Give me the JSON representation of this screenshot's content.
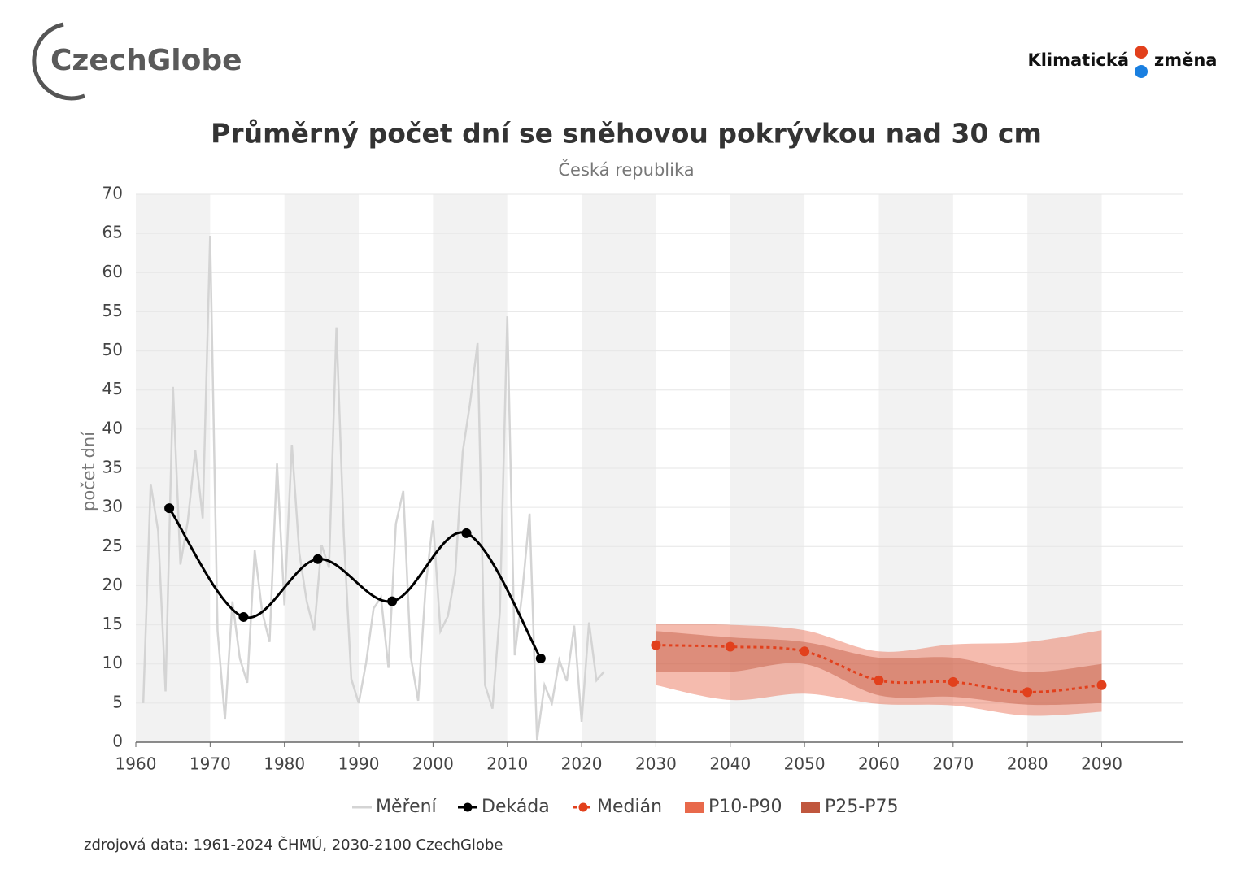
{
  "logos": {
    "left": "CzechGlobe",
    "right_1": "Klimatická",
    "right_2": "změna"
  },
  "chart_data": {
    "type": "line",
    "title": "Průměrný počet dní se sněhovou pokrývkou nad 30 cm",
    "subtitle": "Česká republika",
    "y_label": "počet dní",
    "source": "zdrojová data: 1961-2024 ČHMÚ, 2030-2100 CzechGlobe",
    "xlim": [
      1960,
      2101
    ],
    "xticks": [
      1960,
      1970,
      1980,
      1990,
      2000,
      2010,
      2020,
      2030,
      2040,
      2050,
      2060,
      2070,
      2080,
      2090
    ],
    "ylim": [
      0,
      70
    ],
    "yticks": [
      0,
      5,
      10,
      15,
      20,
      25,
      30,
      35,
      40,
      45,
      50,
      55,
      60,
      65,
      70
    ],
    "grid": true,
    "series": [
      {
        "name": "Měření",
        "type": "line",
        "color": "#d4d4d4",
        "x": [
          1961,
          1962,
          1963,
          1964,
          1965,
          1966,
          1967,
          1968,
          1969,
          1970,
          1971,
          1972,
          1973,
          1974,
          1975,
          1976,
          1977,
          1978,
          1979,
          1980,
          1981,
          1982,
          1983,
          1984,
          1985,
          1986,
          1987,
          1988,
          1989,
          1990,
          1991,
          1992,
          1993,
          1994,
          1995,
          1996,
          1997,
          1998,
          1999,
          2000,
          2001,
          2002,
          2003,
          2004,
          2005,
          2006,
          2007,
          2008,
          2009,
          2010,
          2011,
          2012,
          2013,
          2014,
          2015,
          2016,
          2017,
          2018,
          2019,
          2020,
          2021,
          2022,
          2023
        ],
        "values": [
          5,
          33,
          27,
          6.5,
          45.4,
          22.7,
          28.3,
          37.3,
          28.6,
          64.7,
          14.2,
          2.9,
          18,
          10.7,
          7.6,
          24.5,
          16.7,
          12.8,
          35.6,
          17.5,
          38,
          24.2,
          18,
          14.3,
          25.2,
          22.3,
          53,
          26.3,
          8.1,
          5,
          10.2,
          17.1,
          18.5,
          9.5,
          27.9,
          32.1,
          10.9,
          5.3,
          19.8,
          28.3,
          14.2,
          16.1,
          21.6,
          37.1,
          43.4,
          51,
          7.3,
          4.3,
          16.7,
          54.4,
          11.1,
          19,
          29.2,
          0.3,
          7.3,
          5,
          10.5,
          7.8,
          14.9,
          2.6,
          15.3,
          7.9,
          9
        ]
      },
      {
        "name": "Dekáda",
        "type": "smooth",
        "color": "#000000",
        "markers": true,
        "x": [
          1964.5,
          1974.5,
          1984.5,
          1994.5,
          2004.5,
          2014.5
        ],
        "values": [
          29.9,
          16,
          23.4,
          18,
          26.7,
          10.7
        ]
      },
      {
        "name": "Medián",
        "type": "smooth",
        "dashed": true,
        "markers": true,
        "color": "#e2401c",
        "x": [
          2030,
          2040,
          2050,
          2060,
          2070,
          2080,
          2090
        ],
        "values": [
          12.4,
          12.2,
          11.6,
          7.9,
          7.7,
          6.4,
          7.3
        ]
      },
      {
        "name": "P10-P90",
        "type": "band",
        "color": "#e8694b",
        "x": [
          2030,
          2040,
          2050,
          2060,
          2070,
          2080,
          2090
        ],
        "lower": [
          7.3,
          5.4,
          6.2,
          4.9,
          4.7,
          3.4,
          3.9
        ],
        "upper": [
          15.1,
          15,
          14.3,
          11.6,
          12.5,
          12.8,
          14.3
        ]
      },
      {
        "name": "P25-P75",
        "type": "band",
        "color": "#c0573e",
        "x": [
          2030,
          2040,
          2050,
          2060,
          2070,
          2080,
          2090
        ],
        "lower": [
          9,
          9,
          10,
          6,
          5.8,
          4.8,
          5
        ],
        "upper": [
          14.2,
          13.4,
          12.8,
          10.8,
          10.8,
          9,
          10
        ]
      }
    ]
  }
}
